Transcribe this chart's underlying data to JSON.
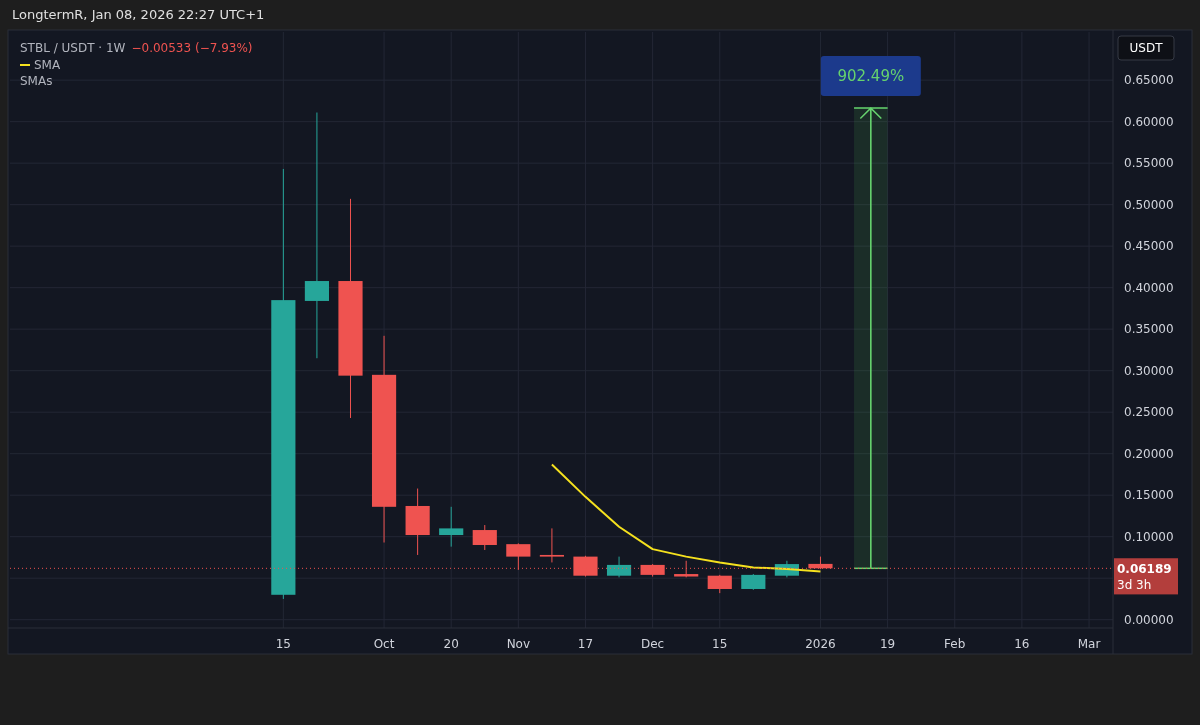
{
  "chart_data": {
    "type": "candlestick",
    "title": "STBL / USDT · 1W",
    "subtitle": "−0.00533 (−7.93%)",
    "ylabel": "USDT",
    "annotations": [
      "LongtermR, Jan 08, 2026 22:27 UTC+1",
      "SMAs",
      "3d 3h",
      "902.49%"
    ],
    "x": [
      "2025-09-15",
      "2025-09-22",
      "2025-09-29",
      "2025-10-06",
      "2025-10-13",
      "2025-10-20",
      "2025-10-27",
      "2025-11-03",
      "2025-11-10",
      "2025-11-17",
      "2025-11-24",
      "2025-12-01",
      "2025-12-08",
      "2025-12-15",
      "2025-12-22",
      "2025-12-29",
      "2026-01-05"
    ],
    "ohlc": [
      [
        0.03,
        0.543,
        0.025,
        0.385
      ],
      [
        0.384,
        0.611,
        0.315,
        0.408
      ],
      [
        0.408,
        0.507,
        0.243,
        0.294
      ],
      [
        0.295,
        0.342,
        0.093,
        0.136
      ],
      [
        0.137,
        0.158,
        0.078,
        0.102
      ],
      [
        0.102,
        0.136,
        0.088,
        0.11
      ],
      [
        0.108,
        0.114,
        0.084,
        0.09
      ],
      [
        0.091,
        0.092,
        0.06,
        0.076
      ],
      [
        0.078,
        0.11,
        0.069,
        0.076
      ],
      [
        0.076,
        0.077,
        0.052,
        0.053
      ],
      [
        0.053,
        0.076,
        0.051,
        0.066
      ],
      [
        0.066,
        0.067,
        0.052,
        0.054
      ],
      [
        0.055,
        0.071,
        0.051,
        0.052
      ],
      [
        0.053,
        0.054,
        0.032,
        0.037
      ],
      [
        0.037,
        0.055,
        0.036,
        0.054
      ],
      [
        0.053,
        0.071,
        0.051,
        0.067
      ],
      [
        0.06722,
        0.076,
        0.061,
        0.06189
      ]
    ],
    "colors": [
      "#26a69a",
      "#26a69a",
      "#ef5350",
      "#ef5350",
      "#ef5350",
      "#26a69a",
      "#ef5350",
      "#ef5350",
      "#ef5350",
      "#ef5350",
      "#26a69a",
      "#ef5350",
      "#ef5350",
      "#ef5350",
      "#26a69a",
      "#26a69a",
      "#ef5350"
    ],
    "series": [
      {
        "type": "line",
        "name": "SMA",
        "color": "#f5e11e",
        "x": [
          "2025-11-10",
          "2025-11-17",
          "2025-11-24",
          "2025-12-01",
          "2025-12-08",
          "2025-12-15",
          "2025-12-22",
          "2025-12-29",
          "2026-01-05"
        ],
        "values": [
          0.187,
          0.148,
          0.112,
          0.085,
          0.076,
          0.069,
          0.063,
          0.061,
          0.058
        ]
      }
    ],
    "xlim": [
      "2025-07-20",
      "2026-03-07"
    ],
    "xticks": [
      {
        "value": "2025-09-15",
        "label": "15"
      },
      {
        "value": "2025-10-06",
        "label": "Oct"
      },
      {
        "value": "2025-10-20",
        "label": "20"
      },
      {
        "value": "2025-11-03",
        "label": "Nov"
      },
      {
        "value": "2025-11-17",
        "label": "17"
      },
      {
        "value": "2025-12-01",
        "label": "Dec"
      },
      {
        "value": "2025-12-15",
        "label": "15"
      },
      {
        "value": "2026-01-05",
        "label": "2026"
      },
      {
        "value": "2026-01-19",
        "label": "19"
      },
      {
        "value": "2026-02-02",
        "label": "Feb"
      },
      {
        "value": "2026-02-16",
        "label": "16"
      },
      {
        "value": "2026-03-02",
        "label": "Mar"
      }
    ],
    "ylim": [
      -0.01,
      0.708
    ],
    "yticks": [
      {
        "value": 0,
        "label": "0.00000"
      },
      {
        "value": 0.05,
        "label": null
      },
      {
        "value": 0.1,
        "label": "0.10000"
      },
      {
        "value": 0.15,
        "label": "0.15000"
      },
      {
        "value": 0.2,
        "label": "0.20000"
      },
      {
        "value": 0.25,
        "label": "0.25000"
      },
      {
        "value": 0.3,
        "label": "0.30000"
      },
      {
        "value": 0.35,
        "label": "0.35000"
      },
      {
        "value": 0.4,
        "label": "0.40000"
      },
      {
        "value": 0.45,
        "label": "0.45000"
      },
      {
        "value": 0.5,
        "label": "0.50000"
      },
      {
        "value": 0.55,
        "label": "0.55000"
      },
      {
        "value": 0.6,
        "label": "0.60000"
      },
      {
        "value": 0.65,
        "label": "0.65000"
      }
    ],
    "ref_lines": [
      {
        "axis": "y",
        "value": 0.06189,
        "label": "0.06189",
        "color": "#ef5350",
        "line_style": "dotted"
      }
    ],
    "grid": true,
    "legend": "top left"
  }
}
